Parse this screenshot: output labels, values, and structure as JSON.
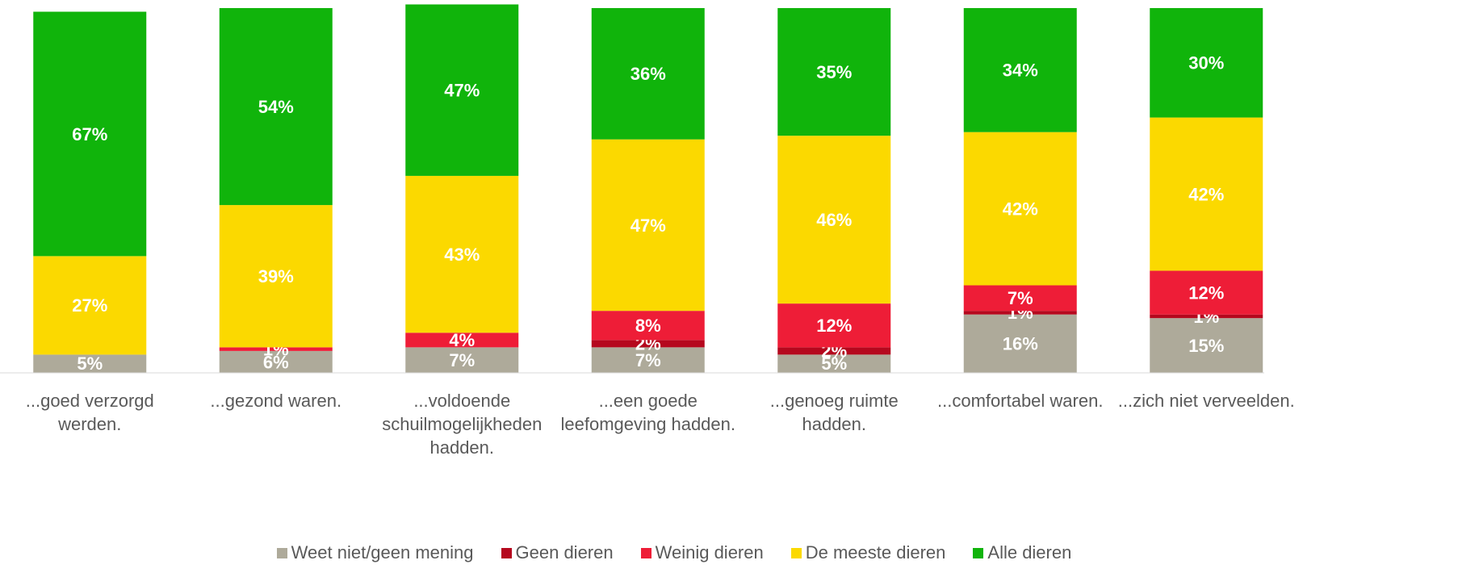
{
  "chart_data": {
    "type": "stacked_bar",
    "categories": [
      "...goed verzorgd werden.",
      "...gezond waren.",
      "...voldoende schuilmogelijkheden hadden.",
      "...een goede leefomgeving hadden.",
      "...genoeg ruimte hadden.",
      "...comfortabel waren.",
      "...zich niet verveelden."
    ],
    "ylim": [
      0,
      100
    ],
    "legend": "bottom",
    "series": [
      {
        "name": "Weet niet/geen mening",
        "color": "#aeaa9a",
        "values": [
          5,
          6,
          7,
          7,
          5,
          16,
          15
        ],
        "value_labels": [
          "5%",
          "6%",
          "7%",
          "7%",
          "5%",
          "16%",
          "15%"
        ]
      },
      {
        "name": "Geen dieren",
        "color": "#b5081e",
        "values": [
          0,
          0,
          0,
          2,
          2,
          1,
          1
        ],
        "value_labels": [
          null,
          null,
          null,
          "2%",
          "2%",
          "1%",
          "1%"
        ]
      },
      {
        "name": "Weinig dieren",
        "color": "#ee1d37",
        "values": [
          0,
          1,
          4,
          8,
          12,
          7,
          12
        ],
        "value_labels": [
          null,
          "1%",
          "4%",
          "8%",
          "12%",
          "7%",
          "12%"
        ]
      },
      {
        "name": "De meeste dieren",
        "color": "#fbd900",
        "values": [
          27,
          39,
          43,
          47,
          46,
          42,
          42
        ],
        "value_labels": [
          "27%",
          "39%",
          "43%",
          "47%",
          "46%",
          "42%",
          "42%"
        ]
      },
      {
        "name": "Alle dieren",
        "color": "#10b40b",
        "values": [
          67,
          54,
          47,
          36,
          35,
          34,
          30
        ],
        "value_labels": [
          "67%",
          "54%",
          "47%",
          "36%",
          "35%",
          "34%",
          "30%"
        ]
      }
    ]
  }
}
